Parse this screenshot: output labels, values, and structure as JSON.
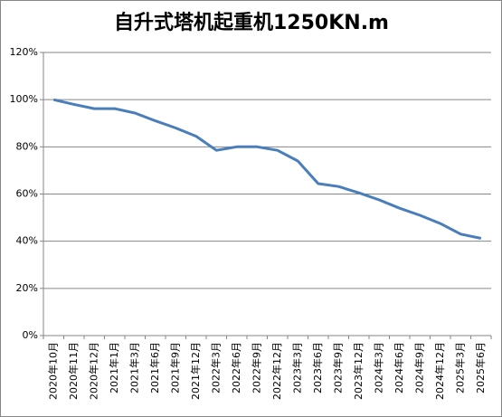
{
  "chart_data": {
    "type": "line",
    "title": "自升式塔机起重机1250KN.m",
    "categories": [
      "2020年10月",
      "2020年11月",
      "2020年12月",
      "2021年1月",
      "2021年3月",
      "2021年6月",
      "2021年9月",
      "2021年12月",
      "2022年3月",
      "2022年6月",
      "2022年9月",
      "2022年12月",
      "2023年3月",
      "2023年6月",
      "2023年9月",
      "2023年12月",
      "2024年3月",
      "2024年6月",
      "2024年9月",
      "2024年12月",
      "2025年3月",
      "2025年6月"
    ],
    "values": [
      100,
      98,
      96.2,
      96.2,
      94.3,
      91,
      88,
      84.5,
      78.5,
      80,
      80,
      78.5,
      74,
      64.4,
      63.2,
      60.5,
      57.5,
      54,
      51,
      47.5,
      43,
      41.2
    ],
    "color": "#4a7ebb",
    "ylim": [
      0,
      120
    ],
    "yticks": [
      {
        "value": 0,
        "label": "0%"
      },
      {
        "value": 20,
        "label": "20%"
      },
      {
        "value": 40,
        "label": "40%"
      },
      {
        "value": 60,
        "label": "60%"
      },
      {
        "value": 80,
        "label": "80%"
      },
      {
        "value": 100,
        "label": "100%"
      },
      {
        "value": 120,
        "label": "120%"
      }
    ],
    "grid": true
  }
}
